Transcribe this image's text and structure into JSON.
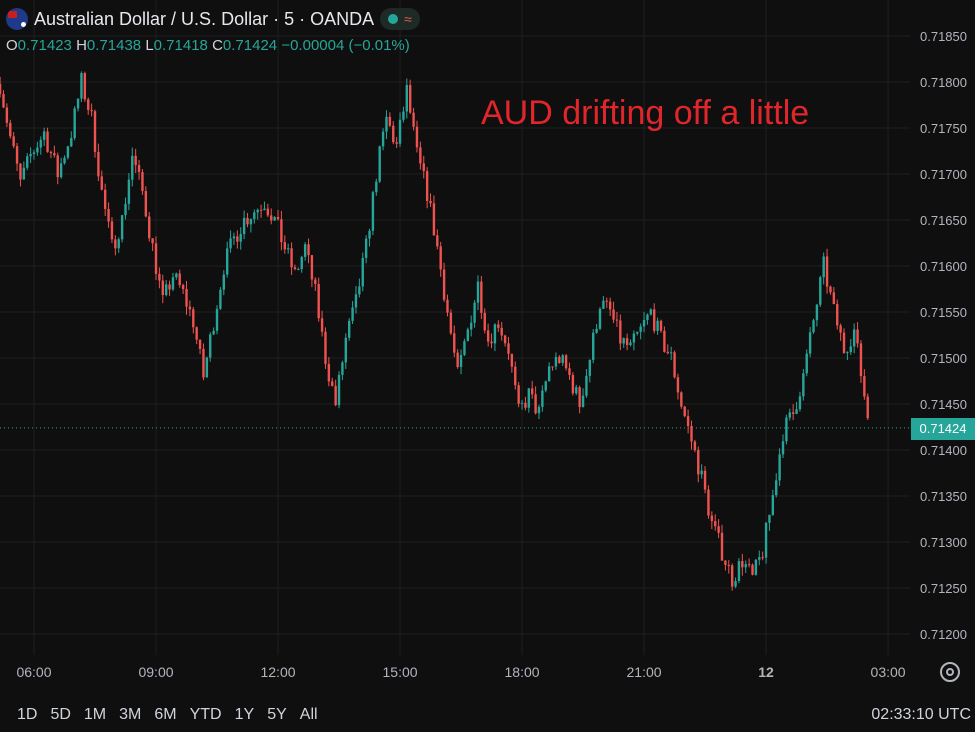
{
  "header": {
    "title": "Australian Dollar / U.S. Dollar · 5 · OANDA",
    "ohlc": {
      "o_label": "O",
      "o_value": "0.71423",
      "h_label": "H",
      "h_value": "0.71438",
      "l_label": "L",
      "l_value": "0.71418",
      "c_label": "C",
      "c_value": "0.71424",
      "change": "−0.00004 (−0.01%)"
    }
  },
  "annotation": "AUD drifting off a little",
  "current_price_label": "0.71424",
  "range_buttons": [
    "1D",
    "5D",
    "1M",
    "3M",
    "6M",
    "YTD",
    "1Y",
    "5Y",
    "All"
  ],
  "clock": "02:33:10 UTC",
  "colors": {
    "background": "#0f0f0f",
    "up": "#26a69a",
    "down": "#ef5350",
    "annotation": "#e0262b",
    "grid": "#1f1f1f"
  },
  "icons": {
    "flag": "aud-usd-flag-icon",
    "status": "market-status-icon",
    "settings": "gear-icon"
  },
  "chart_data": {
    "type": "candlestick",
    "ylim": [
      0.7117,
      0.7188
    ],
    "y_ticks": [
      "0.71850",
      "0.71800",
      "0.71750",
      "0.71700",
      "0.71650",
      "0.71600",
      "0.71550",
      "0.71500",
      "0.71450",
      "0.71400",
      "0.71350",
      "0.71300",
      "0.71250",
      "0.71200"
    ],
    "x_ticks": [
      "06:00",
      "09:00",
      "12:00",
      "15:00",
      "18:00",
      "21:00",
      "12",
      "03:00"
    ],
    "current_price": 0.71424,
    "close_path": [
      [
        "05:10",
        0.71798
      ],
      [
        "05:25",
        0.7174
      ],
      [
        "05:40",
        0.7169
      ],
      [
        "05:55",
        0.7172
      ],
      [
        "06:15",
        0.71745
      ],
      [
        "06:35",
        0.717
      ],
      [
        "06:55",
        0.71745
      ],
      [
        "07:10",
        0.718
      ],
      [
        "07:25",
        0.7176
      ],
      [
        "07:40",
        0.7168
      ],
      [
        "07:55",
        0.7162
      ],
      [
        "08:10",
        0.7165
      ],
      [
        "08:25",
        0.7172
      ],
      [
        "08:40",
        0.7168
      ],
      [
        "08:55",
        0.7162
      ],
      [
        "09:10",
        0.7156
      ],
      [
        "09:25",
        0.7159
      ],
      [
        "09:40",
        0.7157
      ],
      [
        "09:55",
        0.7154
      ],
      [
        "10:10",
        0.7148
      ],
      [
        "10:25",
        0.7154
      ],
      [
        "10:40",
        0.716
      ],
      [
        "10:55",
        0.7163
      ],
      [
        "11:10",
        0.7165
      ],
      [
        "11:25",
        0.7166
      ],
      [
        "11:40",
        0.7167
      ],
      [
        "11:55",
        0.7165
      ],
      [
        "12:10",
        0.7162
      ],
      [
        "12:25",
        0.7159
      ],
      [
        "12:40",
        0.7162
      ],
      [
        "12:55",
        0.7157
      ],
      [
        "13:10",
        0.715
      ],
      [
        "13:25",
        0.7145
      ],
      [
        "13:40",
        0.7152
      ],
      [
        "13:55",
        0.7156
      ],
      [
        "14:10",
        0.7162
      ],
      [
        "14:25",
        0.717
      ],
      [
        "14:40",
        0.7176
      ],
      [
        "14:55",
        0.7173
      ],
      [
        "15:10",
        0.7179
      ],
      [
        "15:25",
        0.7172
      ],
      [
        "15:40",
        0.7168
      ],
      [
        "15:55",
        0.7162
      ],
      [
        "16:10",
        0.7155
      ],
      [
        "16:25",
        0.7148
      ],
      [
        "16:40",
        0.7153
      ],
      [
        "16:55",
        0.7158
      ],
      [
        "17:10",
        0.7152
      ],
      [
        "17:25",
        0.7154
      ],
      [
        "17:40",
        0.7151
      ],
      [
        "17:55",
        0.7144
      ],
      [
        "18:10",
        0.7146
      ],
      [
        "18:25",
        0.7144
      ],
      [
        "18:40",
        0.7149
      ],
      [
        "18:55",
        0.715
      ],
      [
        "19:10",
        0.7148
      ],
      [
        "19:25",
        0.7145
      ],
      [
        "19:40",
        0.715
      ],
      [
        "19:55",
        0.7156
      ],
      [
        "20:10",
        0.7155
      ],
      [
        "20:25",
        0.7152
      ],
      [
        "20:40",
        0.7151
      ],
      [
        "20:55",
        0.7153
      ],
      [
        "21:10",
        0.7155
      ],
      [
        "21:25",
        0.7152
      ],
      [
        "21:40",
        0.715
      ],
      [
        "21:55",
        0.7145
      ],
      [
        "22:10",
        0.7141
      ],
      [
        "22:25",
        0.7137
      ],
      [
        "22:40",
        0.7132
      ],
      [
        "22:55",
        0.7129
      ],
      [
        "23:10",
        0.7126
      ],
      [
        "23:25",
        0.7128
      ],
      [
        "23:40",
        0.7126
      ],
      [
        "23:55",
        0.7129
      ],
      [
        "00:10",
        0.7135
      ],
      [
        "00:25",
        0.7142
      ],
      [
        "00:40",
        0.7144
      ],
      [
        "00:55",
        0.7148
      ],
      [
        "01:10",
        0.7154
      ],
      [
        "01:25",
        0.716
      ],
      [
        "01:40",
        0.7155
      ],
      [
        "01:55",
        0.7151
      ],
      [
        "02:10",
        0.7153
      ],
      [
        "02:25",
        0.7146
      ],
      [
        "02:33",
        0.71424
      ]
    ]
  }
}
